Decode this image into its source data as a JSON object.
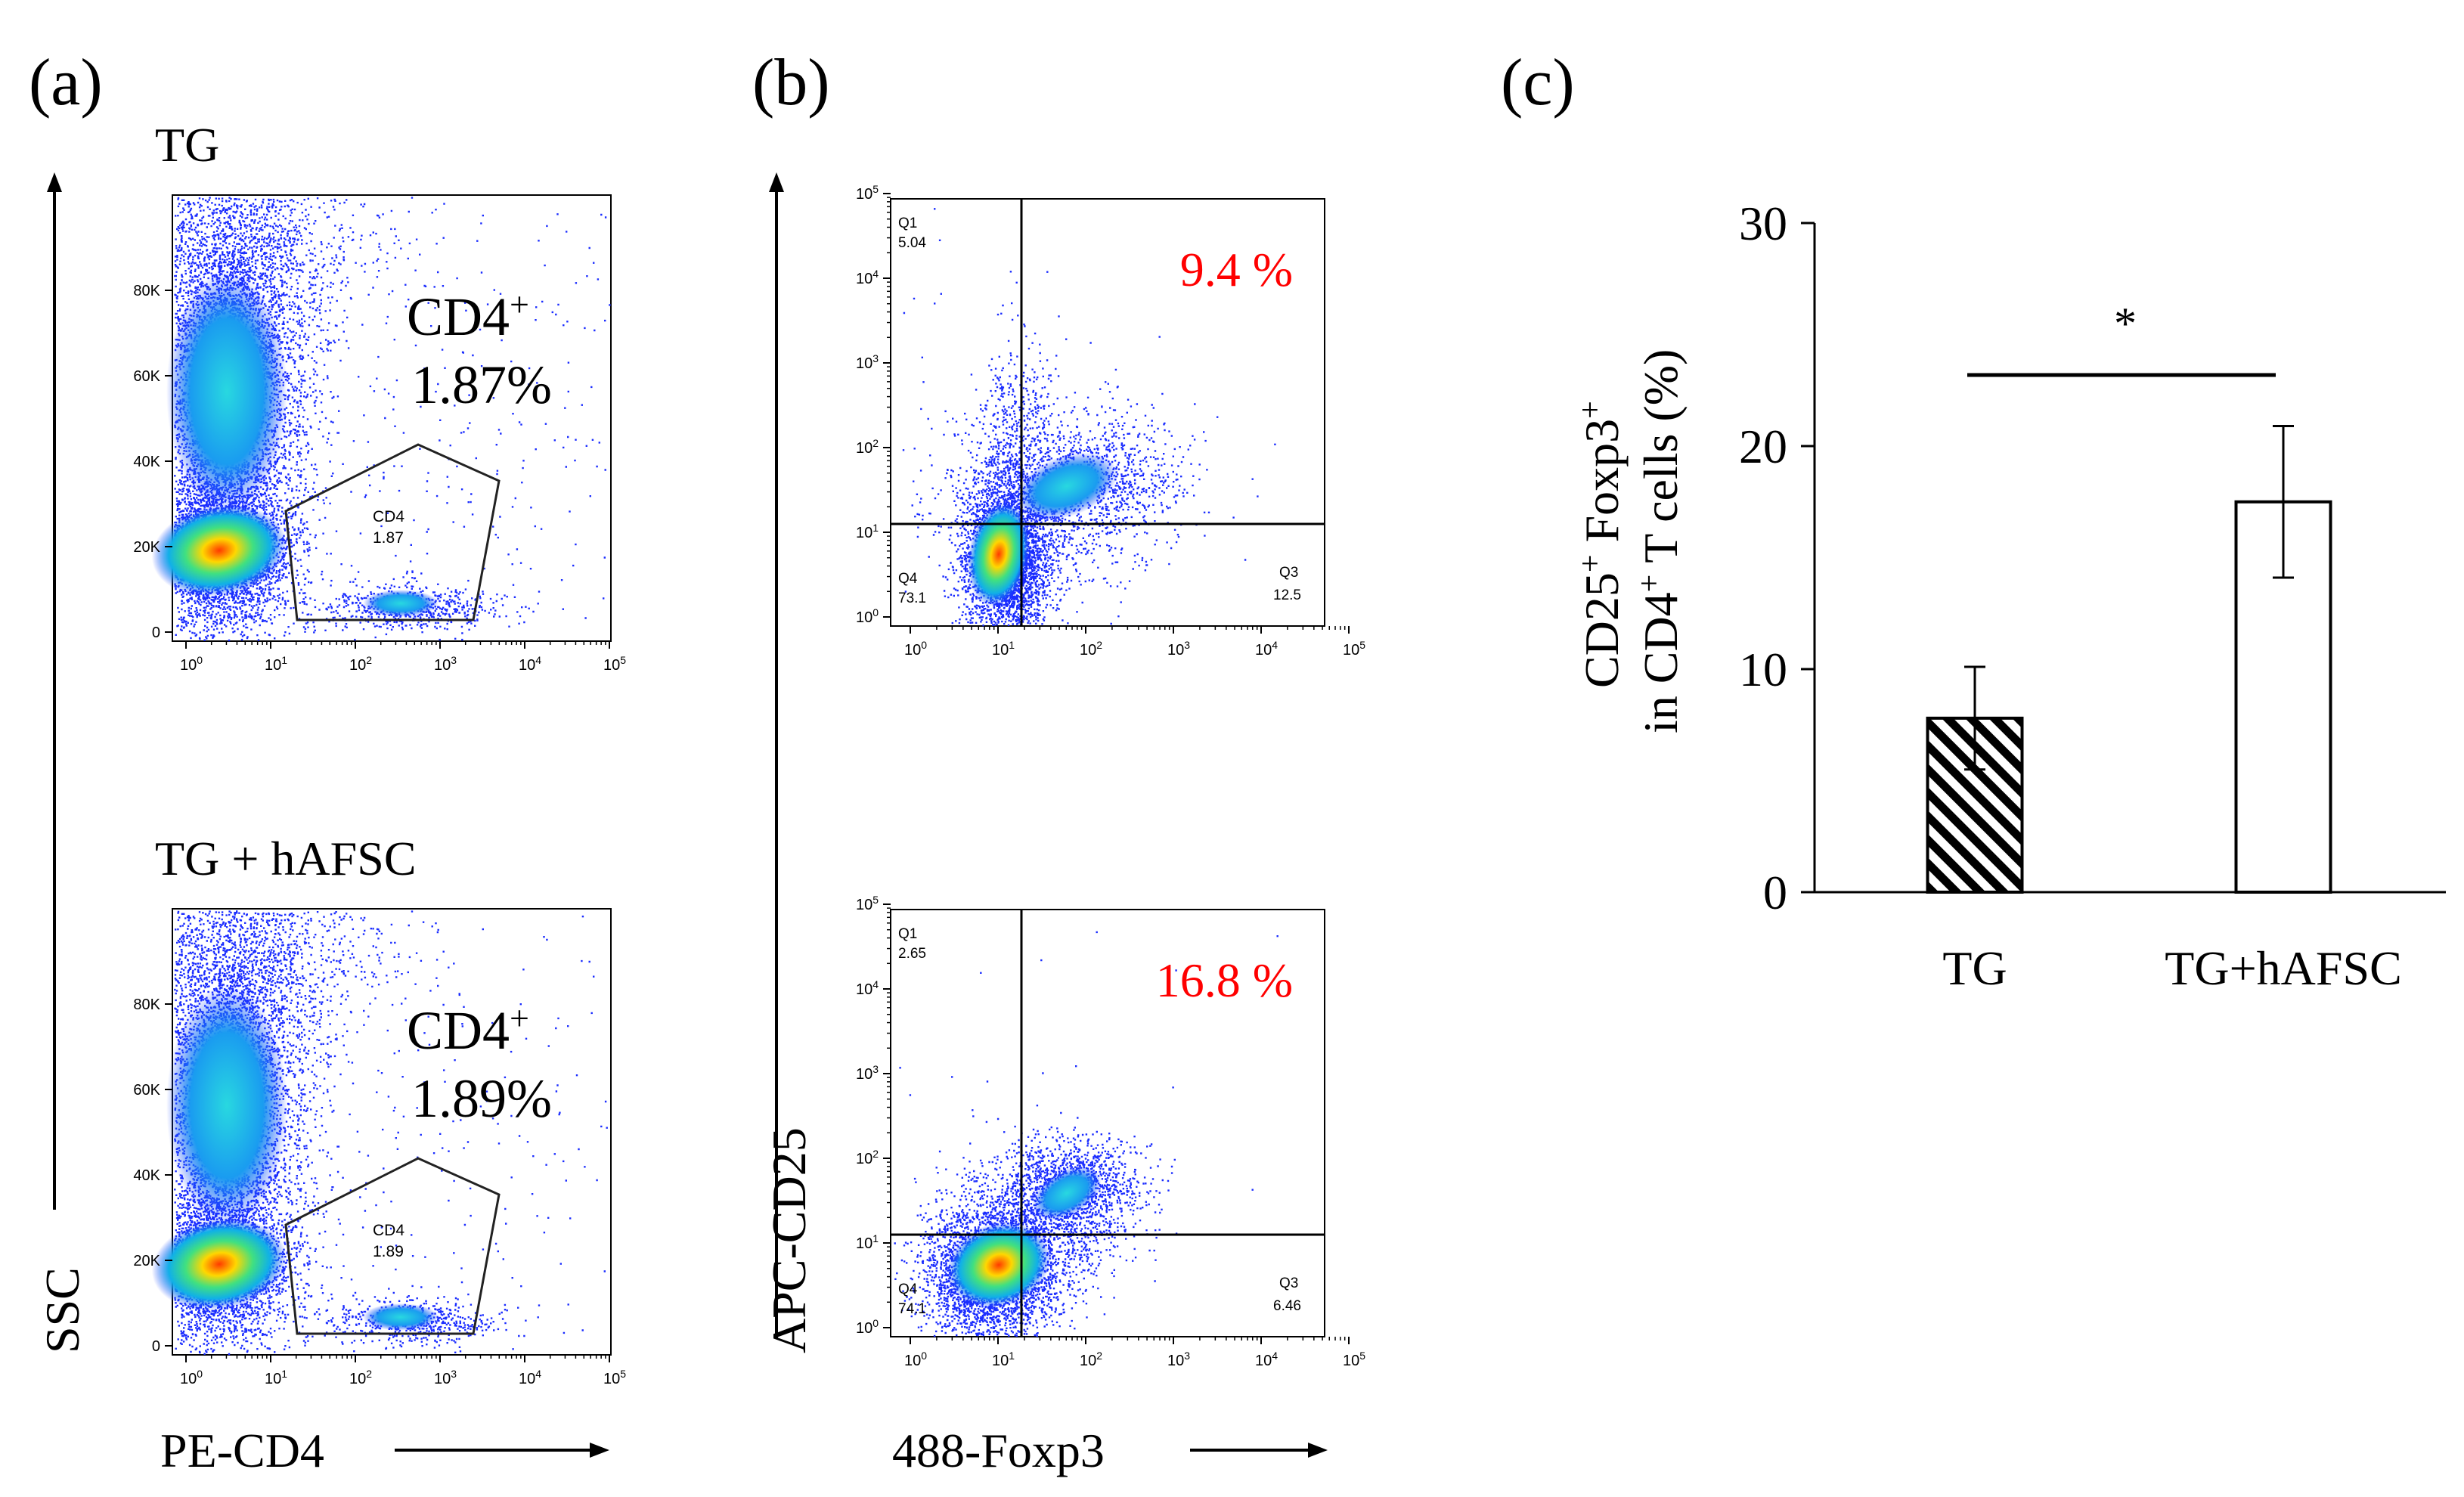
{
  "panels": {
    "a": "(a)",
    "b": "(b)",
    "c": "(c)"
  },
  "panel_a": {
    "ylabel": "SSC",
    "xlabel": "PE-CD4",
    "y_ticks": [
      "0",
      "20K",
      "40K",
      "60K",
      "80K"
    ],
    "x_ticks": [
      "10",
      "10",
      "10",
      "10",
      "10",
      "10"
    ],
    "x_exp": [
      "0",
      "1",
      "2",
      "3",
      "4",
      "5"
    ],
    "plots": [
      {
        "title": "TG",
        "annot_main": "CD4",
        "annot_sup": "+",
        "annot_pct": "1.87%",
        "gate_label": "CD4",
        "gate_value": "1.87"
      },
      {
        "title": "TG + hAFSC",
        "annot_main": "CD4",
        "annot_sup": "+",
        "annot_pct": "1.89%",
        "gate_label": "CD4",
        "gate_value": "1.89"
      }
    ]
  },
  "panel_b": {
    "ylabel": "APC-CD25",
    "xlabel": "488-Foxp3",
    "tick_base": "10",
    "exp": [
      "0",
      "1",
      "2",
      "3",
      "4",
      "5"
    ],
    "plots": [
      {
        "highlight": "9.4 %",
        "q1": "Q1",
        "q1_val": "5.04",
        "q4": "Q4",
        "q4_val": "73.1",
        "q3": "Q3",
        "q3_val": "12.5"
      },
      {
        "highlight": "16.8 %",
        "q1": "Q1",
        "q1_val": "2.65",
        "q4": "Q4",
        "q4_val": "74.1",
        "q3": "Q3",
        "q3_val": "6.46"
      }
    ],
    "highlight_color": "#ff0000"
  },
  "chart_data": {
    "type": "bar",
    "categories": [
      "TG",
      "TG+hAFSC"
    ],
    "values": [
      7.8,
      17.5
    ],
    "errors": [
      2.3,
      3.4
    ],
    "ylabel_line1": "CD25",
    "ylabel_line1_sup": "+",
    "ylabel_line1_b": " Foxp3",
    "ylabel_line1_sup2": "+",
    "ylabel_line2": "in CD4",
    "ylabel_line2_sup": "+",
    "ylabel_line2_b": " T cells (%)",
    "ylim": [
      0,
      30
    ],
    "yticks": [
      0,
      10,
      20,
      30
    ],
    "ytick_labels": [
      "0",
      "10",
      "20",
      "30"
    ],
    "fills": [
      "hatched",
      "white"
    ],
    "significance": "*",
    "grid": false
  }
}
